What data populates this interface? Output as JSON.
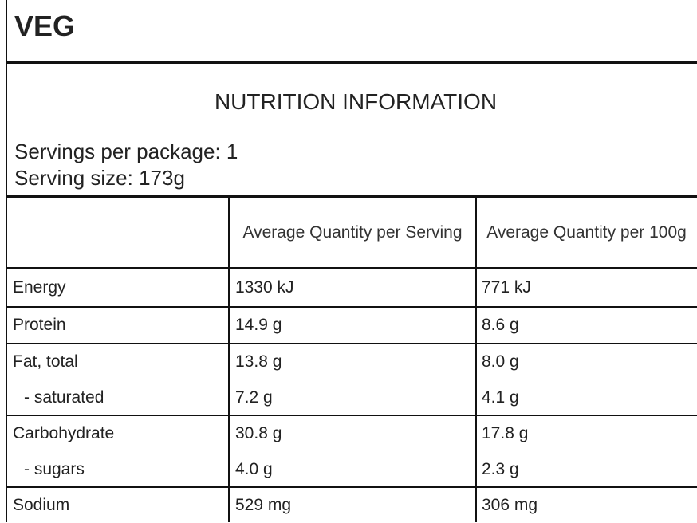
{
  "header": {
    "title": "VEG"
  },
  "section": {
    "title": "NUTRITION INFORMATION",
    "servings": [
      "Servings per package: 1",
      "Serving size: 173g"
    ]
  },
  "table": {
    "columns": [
      "Average Quantity per Serving",
      "Average Quantity per 100g"
    ],
    "groups": [
      [
        [
          "Energy",
          "1330 kJ",
          "771 kJ"
        ]
      ],
      [
        [
          "Protein",
          "14.9 g",
          "8.6 g"
        ]
      ],
      [
        [
          "Fat, total",
          "13.8 g",
          "8.0 g"
        ],
        [
          "- saturated",
          "7.2 g",
          "4.1 g"
        ]
      ],
      [
        [
          "Carbohydrate",
          "30.8 g",
          "17.8 g"
        ],
        [
          "- sugars",
          "4.0 g",
          "2.3 g"
        ]
      ],
      [
        [
          "Sodium",
          "529 mg",
          "306 mg"
        ]
      ]
    ]
  }
}
